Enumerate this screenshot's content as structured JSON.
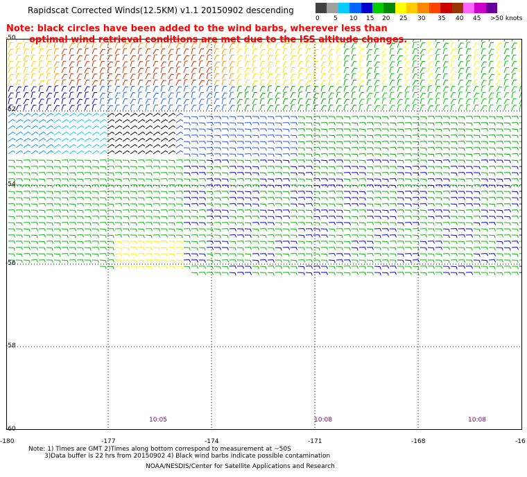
{
  "header": {
    "title": "Rapidscat Corrected Winds(12.5KM) v1.1 20150902 descending",
    "note_line1": "Note: black circles have been added to the wind barbs, wherever less than",
    "note_line2": "optimal wind retrieval conditions are met due to the ISS altitude changes."
  },
  "legend": {
    "colors": [
      "#404040",
      "#a0a0a0",
      "#00ccff",
      "#0066ff",
      "#0000cc",
      "#00cc00",
      "#008800",
      "#ffff00",
      "#ffcc00",
      "#ff8800",
      "#ff4400",
      "#cc0000",
      "#993300",
      "#ff66ff",
      "#cc00cc",
      "#660099"
    ],
    "labels": [
      "0",
      "5",
      "10",
      "15",
      "20",
      "25",
      "30",
      "35",
      "40",
      "45",
      ">50 knots"
    ]
  },
  "map": {
    "lat_labels": [
      "-50",
      "-52",
      "-54",
      "-56",
      "-58",
      "-60"
    ],
    "lon_labels": [
      "-180",
      "-177",
      "-174",
      "-171",
      "-168",
      "-16"
    ],
    "time_labels": [
      "10:05",
      "10:08",
      "10:08"
    ]
  },
  "footer": {
    "note_line1": "Note: 1) Times are GMT 2)Times along bottom correspond to measurement at ~50S",
    "note_line2": "3)Data buffer is 22 hrs from 20150902 4) Black wind barbs indicate possible contamination",
    "credit": "NOAA/NESDIS/Center for Satellite Applications and Research"
  }
}
